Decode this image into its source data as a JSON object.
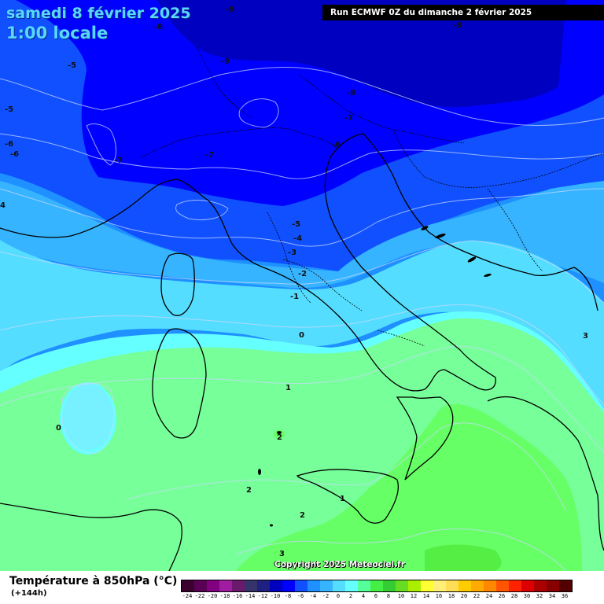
{
  "header": {
    "date_title": "samedi 8 février 2025",
    "time_title": "1:00 locale",
    "run_info": "Run ECMWF 0Z du dimanche 2 février 2025"
  },
  "copyright": "Copyright 2025 Meteociel.fr",
  "legend": {
    "title": "Température à 850hPa (°C)",
    "subtitle": "(+144h)",
    "labels": [
      "-24",
      "-22",
      "-20",
      "-18",
      "-16",
      "-14",
      "-12",
      "-10",
      "-8",
      "-6",
      "-4",
      "-2",
      "0",
      "2",
      "4",
      "6",
      "8",
      "10",
      "12",
      "14",
      "16",
      "18",
      "20",
      "22",
      "24",
      "26",
      "28",
      "30",
      "32",
      "34",
      "36"
    ],
    "colors": [
      "#3a0030",
      "#5a0054",
      "#800080",
      "#a01ca0",
      "#6a1a6a",
      "#34346a",
      "#202080",
      "#0000c0",
      "#0000ff",
      "#1050ff",
      "#1e90ff",
      "#36b4ff",
      "#55ddff",
      "#66ffff",
      "#55ff99",
      "#44ee44",
      "#33cc33",
      "#66dd22",
      "#aaee00",
      "#ffff33",
      "#ffee77",
      "#ffdd55",
      "#ffcc00",
      "#ffaa00",
      "#ff8800",
      "#ff5500",
      "#ff2200",
      "#dd0000",
      "#aa0000",
      "#880000",
      "#550000"
    ]
  },
  "isotherm_labels": [
    {
      "text": "-9"
    },
    {
      "text": "-8"
    },
    {
      "text": "-9"
    },
    {
      "text": "-8"
    },
    {
      "text": "-8"
    },
    {
      "text": "-5"
    },
    {
      "text": "-5"
    },
    {
      "text": "-6"
    },
    {
      "text": "-6"
    },
    {
      "text": "-7"
    },
    {
      "text": "-7"
    },
    {
      "text": "-7"
    },
    {
      "text": "-6"
    },
    {
      "text": "4"
    },
    {
      "text": "-5"
    },
    {
      "text": "-4"
    },
    {
      "text": "-3"
    },
    {
      "text": "-2"
    },
    {
      "text": "-1"
    },
    {
      "text": "0"
    },
    {
      "text": "3"
    },
    {
      "text": "1"
    },
    {
      "text": "0"
    },
    {
      "text": "2"
    },
    {
      "text": "2"
    },
    {
      "text": "1"
    },
    {
      "text": "2"
    },
    {
      "text": "3"
    }
  ]
}
